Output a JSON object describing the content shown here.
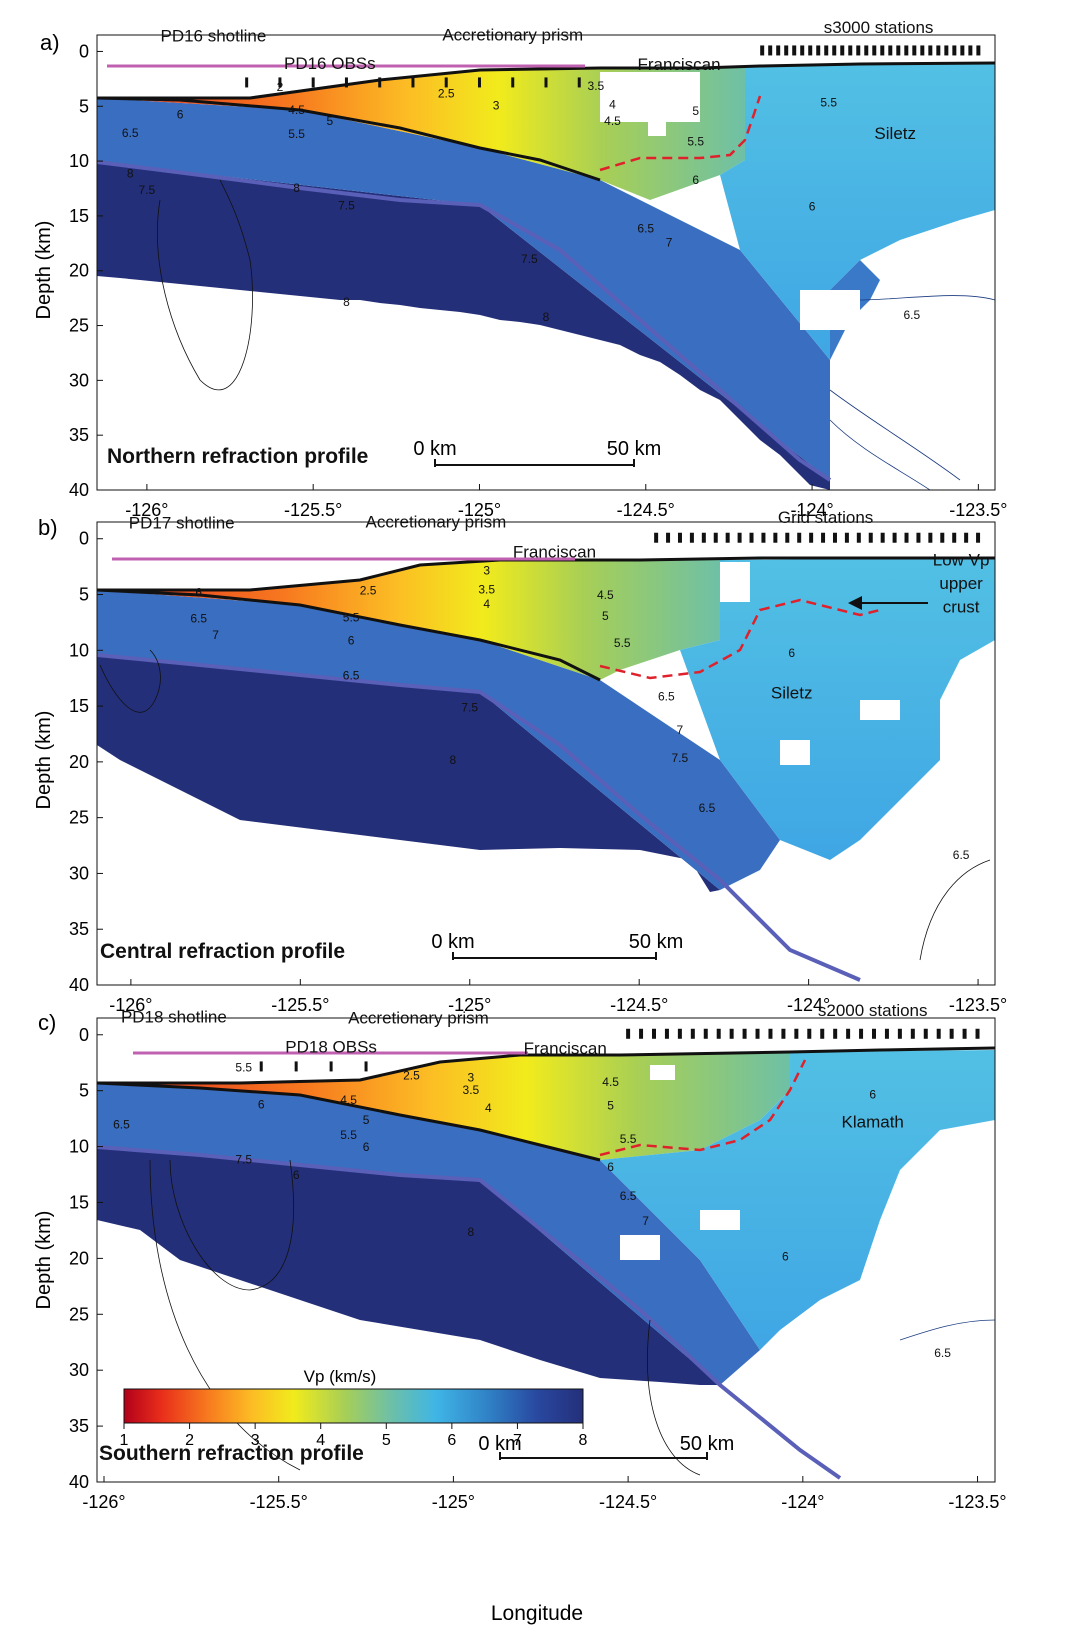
{
  "figure": {
    "ylabel": "Depth (km)",
    "xlabel": "Longitude",
    "colorbar": {
      "title": "Vp (km/s)",
      "ticks": [
        "1",
        "2",
        "3",
        "4",
        "5",
        "6",
        "7",
        "8"
      ],
      "colors": [
        "#b3001a",
        "#e82d1a",
        "#f7781f",
        "#fcbd24",
        "#f1eb1c",
        "#a8cf55",
        "#6ec0a6",
        "#3fb5e6",
        "#2f7ec4",
        "#2948a0",
        "#242f7a"
      ]
    },
    "scale_bar": {
      "left_label": "0 km",
      "right_label": "50 km"
    },
    "colors": {
      "prism_line": "#c060b0",
      "moho_line": "#5a5fb8",
      "pen": "#111111",
      "red_dash": "#e0202a"
    }
  },
  "chart_data": [
    {
      "type": "heatmap",
      "panel_label": "a)",
      "title": "Northern refraction profile",
      "xlabel": "",
      "ylabel": "Depth (km)",
      "xlim": [
        -126.15,
        -123.45
      ],
      "ylim": [
        40,
        -1.5
      ],
      "x_ticks": [
        "-126°",
        "-125.5°",
        "-125°",
        "-124.5°",
        "-124°",
        "-123.5°"
      ],
      "x_tick_values": [
        -126,
        -125.5,
        -125,
        -124.5,
        -124,
        -123.5
      ],
      "y_ticks": [
        0,
        5,
        10,
        15,
        20,
        25,
        30,
        35,
        40
      ],
      "annotations": [
        {
          "text": "PD16 shotline",
          "x": -125.8,
          "y": -0.9
        },
        {
          "text": "Accretionary prism",
          "x": -124.9,
          "y": -1.0
        },
        {
          "text": "s3000 stations",
          "x": -123.8,
          "y": -1.7
        },
        {
          "text": "PD16 OBSs",
          "x": -125.45,
          "y": 1.6
        },
        {
          "text": "Franciscan",
          "x": -124.4,
          "y": 1.7
        },
        {
          "text": "Siletz",
          "x": -123.75,
          "y": 8.0
        }
      ],
      "contour_labels": [
        {
          "text": "2",
          "x": -125.6,
          "y": 3.6
        },
        {
          "text": "2.5",
          "x": -125.1,
          "y": 4.2
        },
        {
          "text": "3",
          "x": -124.95,
          "y": 5.3
        },
        {
          "text": "3.5",
          "x": -124.65,
          "y": 3.5
        },
        {
          "text": "4",
          "x": -124.6,
          "y": 5.2
        },
        {
          "text": "4.5",
          "x": -124.6,
          "y": 6.7
        },
        {
          "text": "5",
          "x": -124.35,
          "y": 5.8
        },
        {
          "text": "5.5",
          "x": -124.35,
          "y": 8.6
        },
        {
          "text": "5.5",
          "x": -123.95,
          "y": 5.0
        },
        {
          "text": "6",
          "x": -124.35,
          "y": 12.1
        },
        {
          "text": "6",
          "x": -124.0,
          "y": 14.5
        },
        {
          "text": "6.5",
          "x": -124.5,
          "y": 16.5
        },
        {
          "text": "7",
          "x": -124.43,
          "y": 17.8
        },
        {
          "text": "7.5",
          "x": -124.85,
          "y": 19.3
        },
        {
          "text": "7.5",
          "x": -125.4,
          "y": 14.4
        },
        {
          "text": "8",
          "x": -125.4,
          "y": 23.2
        },
        {
          "text": "8",
          "x": -124.8,
          "y": 24.6
        },
        {
          "text": "8",
          "x": -125.55,
          "y": 12.8
        },
        {
          "text": "6",
          "x": -125.9,
          "y": 6.1
        },
        {
          "text": "6.5",
          "x": -126.05,
          "y": 7.8
        },
        {
          "text": "4.5",
          "x": -125.55,
          "y": 5.7
        },
        {
          "text": "5",
          "x": -125.45,
          "y": 6.7
        },
        {
          "text": "5.5",
          "x": -125.55,
          "y": 7.9
        },
        {
          "text": "6.5",
          "x": -123.7,
          "y": 24.4
        },
        {
          "text": "7.5",
          "x": -126.0,
          "y": 13.0
        },
        {
          "text": "8",
          "x": -126.05,
          "y": 11.5
        }
      ],
      "stations_x_range": [
        -124.15,
        -123.5
      ],
      "obs_x": [
        -125.7,
        -125.6,
        -125.5,
        -125.4,
        -125.3,
        -125.2,
        -125.1,
        -125.0,
        -124.9,
        -124.8,
        -124.7
      ]
    },
    {
      "type": "heatmap",
      "panel_label": "b)",
      "title": "Central refraction profile",
      "xlabel": "",
      "ylabel": "Depth (km)",
      "xlim": [
        -126.1,
        -123.45
      ],
      "ylim": [
        40,
        -1.5
      ],
      "x_ticks": [
        "-126°",
        "-125.5°",
        "-125°",
        "-124.5°",
        "-124°",
        "-123.5°"
      ],
      "x_tick_values": [
        -126,
        -125.5,
        -125,
        -124.5,
        -124,
        -123.5
      ],
      "y_ticks": [
        0,
        5,
        10,
        15,
        20,
        25,
        30,
        35,
        40
      ],
      "annotations": [
        {
          "text": "PD17 shotline",
          "x": -125.85,
          "y": -0.9
        },
        {
          "text": "Accretionary prism",
          "x": -125.1,
          "y": -1.0
        },
        {
          "text": "Grid stations",
          "x": -123.95,
          "y": -1.4
        },
        {
          "text": "Franciscan",
          "x": -124.75,
          "y": 1.7
        },
        {
          "text": "Siletz",
          "x": -124.05,
          "y": 14.3
        },
        {
          "text": "Low Vp",
          "x": -123.55,
          "y": 2.4
        },
        {
          "text": "upper",
          "x": -123.55,
          "y": 4.5
        },
        {
          "text": "crust",
          "x": -123.55,
          "y": 6.6
        }
      ],
      "contour_labels": [
        {
          "text": "2.5",
          "x": -125.3,
          "y": 5.0
        },
        {
          "text": "3",
          "x": -124.95,
          "y": 3.2
        },
        {
          "text": "3.5",
          "x": -124.95,
          "y": 4.9
        },
        {
          "text": "4",
          "x": -124.95,
          "y": 6.2
        },
        {
          "text": "4.5",
          "x": -124.6,
          "y": 5.4
        },
        {
          "text": "5",
          "x": -124.6,
          "y": 7.3
        },
        {
          "text": "5.5",
          "x": -124.55,
          "y": 9.7
        },
        {
          "text": "5.5",
          "x": -125.35,
          "y": 7.4
        },
        {
          "text": "6",
          "x": -125.35,
          "y": 9.5
        },
        {
          "text": "6",
          "x": -124.05,
          "y": 10.6
        },
        {
          "text": "6.5",
          "x": -125.35,
          "y": 12.6
        },
        {
          "text": "6.5",
          "x": -124.42,
          "y": 14.5
        },
        {
          "text": "7",
          "x": -124.38,
          "y": 17.5
        },
        {
          "text": "7.5",
          "x": -125.0,
          "y": 15.5
        },
        {
          "text": "7.5",
          "x": -124.38,
          "y": 20.0
        },
        {
          "text": "8",
          "x": -125.05,
          "y": 20.2
        },
        {
          "text": "6.5",
          "x": -124.3,
          "y": 24.5
        },
        {
          "text": "6",
          "x": -125.8,
          "y": 5.2
        },
        {
          "text": "6.5",
          "x": -125.8,
          "y": 7.5
        },
        {
          "text": "7",
          "x": -125.75,
          "y": 9.0
        },
        {
          "text": "6.5",
          "x": -123.55,
          "y": 28.7
        }
      ],
      "stations_x_range": [
        -124.45,
        -123.5
      ],
      "arrow": {
        "from_x": -123.6,
        "to_x": -123.9,
        "y": 4.2
      }
    },
    {
      "type": "heatmap",
      "panel_label": "c)",
      "title": "Southern refraction profile",
      "xlabel": "Longitude",
      "ylabel": "Depth (km)",
      "xlim": [
        -126.02,
        -123.45
      ],
      "ylim": [
        40,
        -1.5
      ],
      "x_ticks": [
        "-126°",
        "-125.5°",
        "-125°",
        "-124.5°",
        "-124°",
        "-123.5°"
      ],
      "x_tick_values": [
        -126,
        -125.5,
        -125,
        -124.5,
        -124,
        -123.5
      ],
      "y_ticks": [
        0,
        5,
        10,
        15,
        20,
        25,
        30,
        35,
        40
      ],
      "annotations": [
        {
          "text": "PD18 shotline",
          "x": -125.8,
          "y": -1.1
        },
        {
          "text": "Accretionary prism",
          "x": -125.1,
          "y": -1.0
        },
        {
          "text": "s2000 stations",
          "x": -123.8,
          "y": -1.7
        },
        {
          "text": "PD18 OBSs",
          "x": -125.35,
          "y": 1.6
        },
        {
          "text": "Franciscan",
          "x": -124.68,
          "y": 1.7
        },
        {
          "text": "Klamath",
          "x": -123.8,
          "y": 8.3
        }
      ],
      "contour_labels": [
        {
          "text": "5.5",
          "x": -125.6,
          "y": 3.3
        },
        {
          "text": "2.5",
          "x": -125.12,
          "y": 4.0
        },
        {
          "text": "3",
          "x": -124.95,
          "y": 4.2
        },
        {
          "text": "3.5",
          "x": -124.95,
          "y": 5.3
        },
        {
          "text": "4",
          "x": -124.9,
          "y": 6.9
        },
        {
          "text": "4.5",
          "x": -124.55,
          "y": 4.6
        },
        {
          "text": "5",
          "x": -124.55,
          "y": 6.7
        },
        {
          "text": "5.5",
          "x": -124.5,
          "y": 9.7
        },
        {
          "text": "6",
          "x": -125.55,
          "y": 6.6
        },
        {
          "text": "4.5",
          "x": -125.3,
          "y": 6.2
        },
        {
          "text": "5",
          "x": -125.25,
          "y": 8.0
        },
        {
          "text": "5.5",
          "x": -125.3,
          "y": 9.3
        },
        {
          "text": "6",
          "x": -125.25,
          "y": 10.4
        },
        {
          "text": "6",
          "x": -124.55,
          "y": 12.2
        },
        {
          "text": "6",
          "x": -123.8,
          "y": 5.7
        },
        {
          "text": "6",
          "x": -124.05,
          "y": 20.2
        },
        {
          "text": "6.5",
          "x": -124.5,
          "y": 14.8
        },
        {
          "text": "7",
          "x": -124.45,
          "y": 17.0
        },
        {
          "text": "7.5",
          "x": -125.6,
          "y": 11.5
        },
        {
          "text": "6",
          "x": -125.45,
          "y": 12.9
        },
        {
          "text": "8",
          "x": -124.95,
          "y": 18.0
        },
        {
          "text": "6.5",
          "x": -125.95,
          "y": 8.4
        },
        {
          "text": "6.5",
          "x": -123.6,
          "y": 28.8
        }
      ],
      "stations_x_range": [
        -124.5,
        -123.5
      ],
      "obs_x": [
        -125.55,
        -125.45,
        -125.35,
        -125.25
      ]
    }
  ]
}
